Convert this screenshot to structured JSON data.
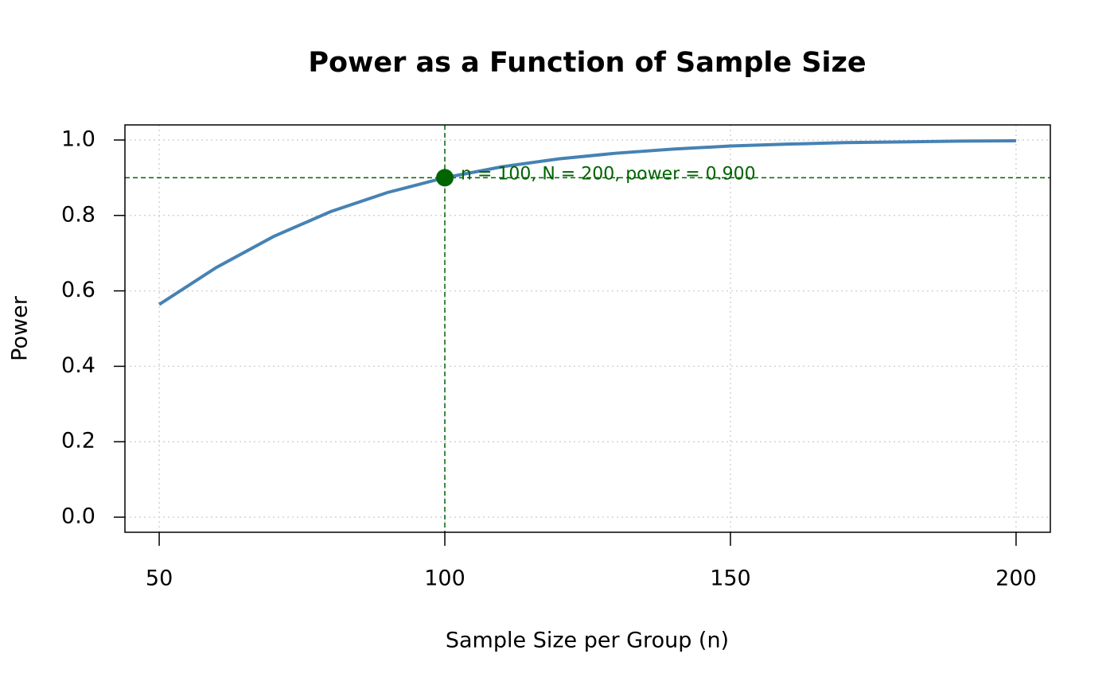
{
  "chart_data": {
    "type": "line",
    "title": "Power as a Function of Sample Size",
    "xlabel": "Sample Size per Group (n)",
    "ylabel": "Power",
    "x": [
      50,
      60,
      70,
      80,
      90,
      100,
      110,
      120,
      130,
      140,
      150,
      160,
      170,
      180,
      190,
      200
    ],
    "series": [
      {
        "name": "Power",
        "color": "#4682b4",
        "values": [
          0.564,
          0.662,
          0.744,
          0.81,
          0.861,
          0.9,
          0.929,
          0.95,
          0.965,
          0.976,
          0.984,
          0.989,
          0.993,
          0.995,
          0.997,
          0.998
        ]
      }
    ],
    "highlight": {
      "x": 100,
      "y": 0.9,
      "label": "n = 100, N = 200, power = 0.900",
      "color": "#006400"
    },
    "xlim": [
      44,
      206
    ],
    "xticks": [
      50,
      100,
      150,
      200
    ],
    "ylim": [
      -0.04,
      1.04
    ],
    "yticks": [
      {
        "value": 0,
        "label": "0.0"
      },
      {
        "value": 0.2,
        "label": "0.2"
      },
      {
        "value": 0.4,
        "label": "0.4"
      },
      {
        "value": 0.6,
        "label": "0.6"
      },
      {
        "value": 0.8,
        "label": "0.8"
      },
      {
        "value": 1,
        "label": "1.0"
      }
    ],
    "grid": true
  }
}
